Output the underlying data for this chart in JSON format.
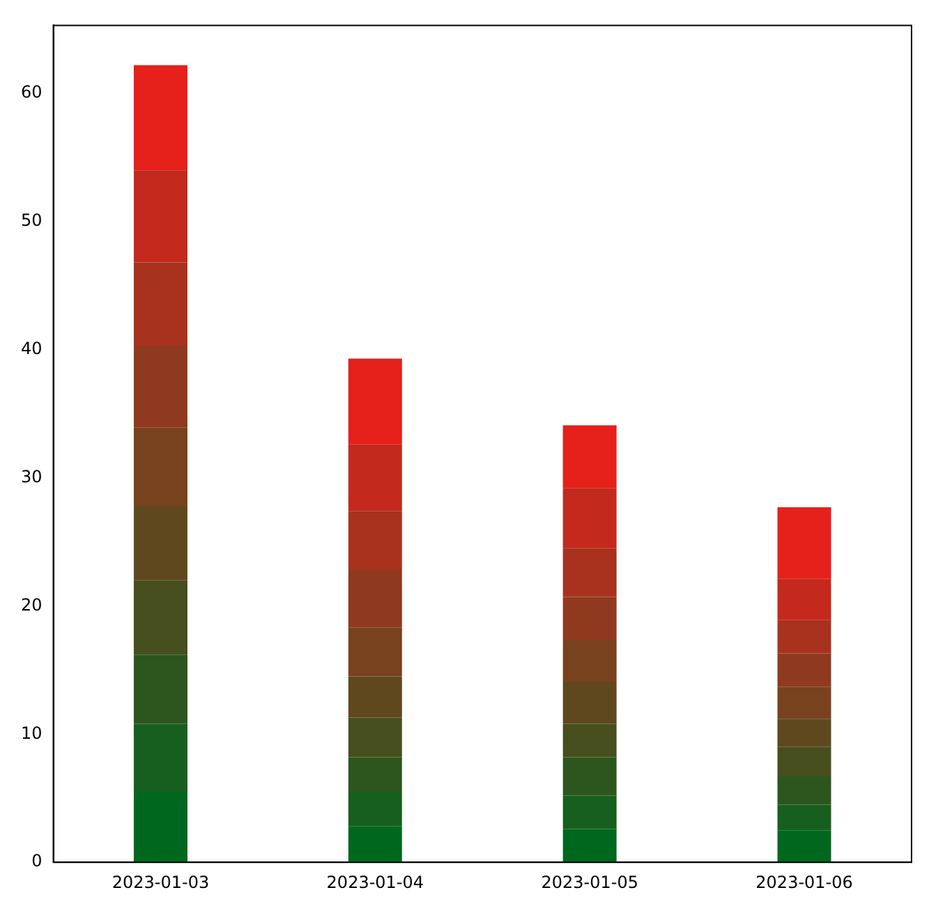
{
  "chart_data": {
    "type": "bar",
    "stacked": true,
    "categories": [
      "2023-01-03",
      "2023-01-04",
      "2023-01-05",
      "2023-01-06"
    ],
    "series": [
      {
        "color": "#00681e",
        "values": [
          5.5,
          2.8,
          2.6,
          2.5
        ]
      },
      {
        "color": "#175f1e",
        "values": [
          5.3,
          2.7,
          2.6,
          2.0
        ]
      },
      {
        "color": "#2d561e",
        "values": [
          5.4,
          2.7,
          3.0,
          2.2
        ]
      },
      {
        "color": "#474f1e",
        "values": [
          5.8,
          3.1,
          2.6,
          2.3
        ]
      },
      {
        "color": "#60481e",
        "values": [
          5.8,
          3.2,
          3.3,
          2.2
        ]
      },
      {
        "color": "#78421e",
        "values": [
          6.1,
          3.8,
          3.2,
          2.5
        ]
      },
      {
        "color": "#8f3a1e",
        "values": [
          6.4,
          4.5,
          3.4,
          2.6
        ]
      },
      {
        "color": "#a8321e",
        "values": [
          6.5,
          4.6,
          3.8,
          2.6
        ]
      },
      {
        "color": "#c4291d",
        "values": [
          7.2,
          5.2,
          4.7,
          3.2
        ]
      },
      {
        "color": "#e6201a",
        "values": [
          8.2,
          6.7,
          4.9,
          5.6
        ]
      }
    ],
    "ylim": [
      0,
      65.3
    ],
    "yticks": [
      0,
      10,
      20,
      30,
      40,
      50,
      60
    ],
    "grid": false,
    "legend": false
  }
}
